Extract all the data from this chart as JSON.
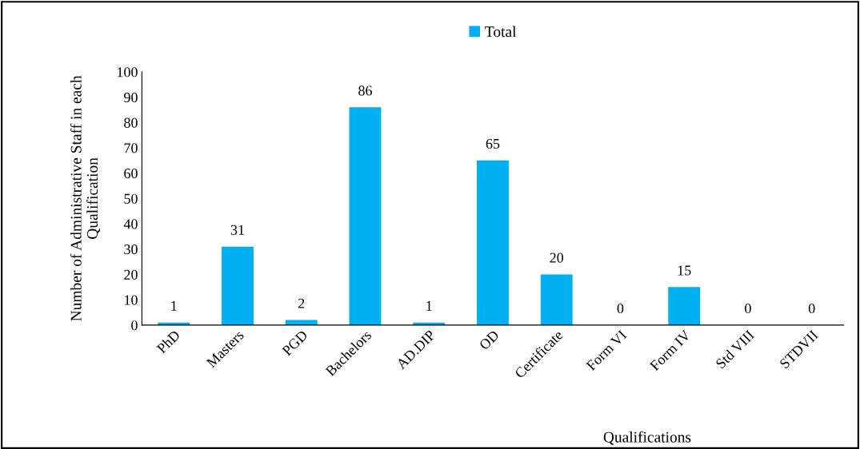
{
  "chart_data": {
    "type": "bar",
    "xlabel": "Qualifications",
    "ylabel": "Number of Administrative Staff in each\nQualification",
    "categories": [
      "PhD",
      "Masters",
      "PGD",
      "Bachelors",
      "AD.DIP",
      "OD",
      "Certificate",
      "Form VI",
      "Form IV",
      "Std VIII",
      "STDVII"
    ],
    "series": [
      {
        "name": "Total",
        "color": "#00b0f0",
        "values": [
          1,
          31,
          2,
          86,
          1,
          65,
          20,
          0,
          15,
          0,
          0
        ]
      }
    ],
    "ylim": [
      0,
      100
    ],
    "yticks": [
      0,
      10,
      20,
      30,
      40,
      50,
      60,
      70,
      80,
      90,
      100
    ],
    "data_labels": true,
    "grid": false,
    "legend": "top"
  }
}
